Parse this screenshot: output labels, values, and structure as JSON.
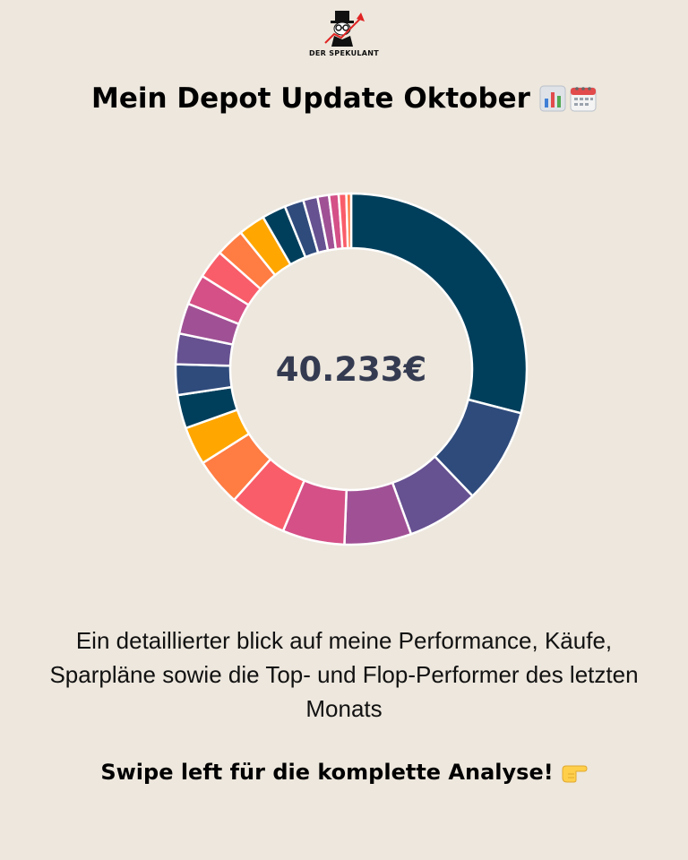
{
  "brand": {
    "name": "DER SPEKULANT"
  },
  "header": {
    "title": "Mein Depot Update Oktober",
    "title_icons": [
      "bar-chart-emoji-icon",
      "calendar-emoji-icon"
    ]
  },
  "chart_data": {
    "type": "pie",
    "style": "donut",
    "center_label": "40.233€",
    "values": [
      33.0,
      10.0,
      7.5,
      7.0,
      6.5,
      6.0,
      5.0,
      4.0,
      3.5,
      3.2,
      3.2,
      3.2,
      3.2,
      3.0,
      3.0,
      2.8,
      2.5,
      2.0,
      1.5,
      1.2,
      1.0,
      0.8,
      0.5
    ],
    "colors": [
      "#003f5c",
      "#2f4b7c",
      "#665191",
      "#a05195",
      "#d45087",
      "#f95d6a",
      "#ff7c43",
      "#ffa600",
      "#003f5c",
      "#2f4b7c",
      "#665191",
      "#a05195",
      "#d45087",
      "#f95d6a",
      "#ff7c43",
      "#ffa600",
      "#003f5c",
      "#2f4b7c",
      "#665191",
      "#a05195",
      "#d45087",
      "#f95d6a",
      "#ff7c43"
    ],
    "legend": "none"
  },
  "description": {
    "lines": [
      "Ein detaillierter blick auf meine Performance, Käufe,",
      "Sparpläne sowie die Top- und Flop-Performer des letzten",
      "Monats"
    ]
  },
  "cta": {
    "text": "Swipe left für die komplette Analyse!",
    "icon": "pointing-right-emoji-icon"
  },
  "colors": {
    "background": "#ede7dd",
    "center_text": "#343b51",
    "arrow_red": "#e02424"
  }
}
